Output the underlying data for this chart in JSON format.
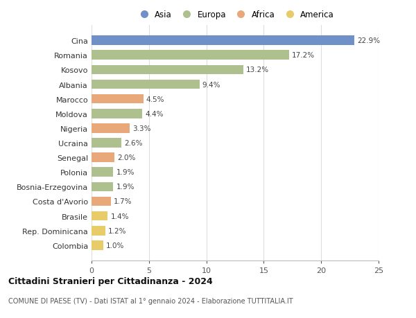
{
  "countries": [
    "Cina",
    "Romania",
    "Kosovo",
    "Albania",
    "Marocco",
    "Moldova",
    "Nigeria",
    "Ucraina",
    "Senegal",
    "Polonia",
    "Bosnia-Erzegovina",
    "Costa d'Avorio",
    "Brasile",
    "Rep. Dominicana",
    "Colombia"
  ],
  "values": [
    22.9,
    17.2,
    13.2,
    9.4,
    4.5,
    4.4,
    3.3,
    2.6,
    2.0,
    1.9,
    1.9,
    1.7,
    1.4,
    1.2,
    1.0
  ],
  "continents": [
    "Asia",
    "Europa",
    "Europa",
    "Europa",
    "Africa",
    "Europa",
    "Africa",
    "Europa",
    "Africa",
    "Europa",
    "Europa",
    "Africa",
    "America",
    "America",
    "America"
  ],
  "colors": {
    "Asia": "#7090c8",
    "Europa": "#adc08e",
    "Africa": "#e8a87a",
    "America": "#e8cc6a"
  },
  "legend_order": [
    "Asia",
    "Europa",
    "Africa",
    "America"
  ],
  "xlim": [
    0,
    25
  ],
  "xticks": [
    0,
    5,
    10,
    15,
    20,
    25
  ],
  "title": "Cittadini Stranieri per Cittadinanza - 2024",
  "subtitle": "COMUNE DI PAESE (TV) - Dati ISTAT al 1° gennaio 2024 - Elaborazione TUTTITALIA.IT",
  "background_color": "#ffffff",
  "grid_color": "#dddddd"
}
